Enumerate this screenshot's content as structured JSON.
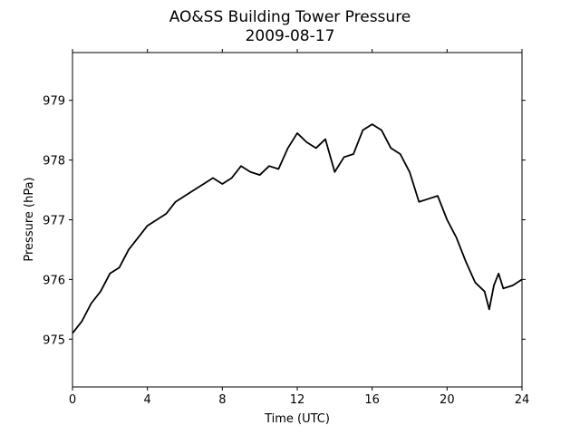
{
  "chart_data": {
    "type": "line",
    "title": "AO&SS Building Tower Pressure",
    "subtitle": "2009-08-17",
    "xlabel": "Time (UTC)",
    "ylabel": "Pressure (hPa)",
    "x": [
      0,
      0.5,
      1,
      1.5,
      2,
      2.5,
      3,
      3.5,
      4,
      4.5,
      5,
      5.5,
      6,
      6.5,
      7,
      7.5,
      8,
      8.5,
      9,
      9.5,
      10,
      10.5,
      11,
      11.5,
      12,
      12.5,
      13,
      13.5,
      14,
      14.5,
      15,
      15.5,
      16,
      16.5,
      17,
      17.5,
      18,
      18.5,
      19,
      19.5,
      20,
      20.5,
      21,
      21.5,
      22,
      22.25,
      22.5,
      22.75,
      23,
      23.5,
      24
    ],
    "series": [
      {
        "name": "Pressure",
        "color": "#000000",
        "values": [
          975.1,
          975.3,
          975.6,
          975.8,
          976.1,
          976.2,
          976.5,
          976.7,
          976.9,
          977.0,
          977.1,
          977.3,
          977.4,
          977.5,
          977.6,
          977.7,
          977.6,
          977.7,
          977.9,
          977.8,
          977.75,
          977.9,
          977.85,
          978.2,
          978.45,
          978.3,
          978.2,
          978.35,
          977.8,
          978.05,
          978.1,
          978.5,
          978.6,
          978.5,
          978.2,
          978.1,
          977.8,
          977.3,
          977.35,
          977.4,
          977.0,
          976.7,
          976.3,
          975.95,
          975.8,
          975.5,
          975.9,
          976.1,
          975.85,
          975.9,
          976.0
        ]
      }
    ],
    "xlim": [
      0,
      24
    ],
    "xticks": [
      0,
      4,
      8,
      12,
      16,
      20,
      24
    ],
    "ylim": [
      974.2,
      979.8
    ],
    "yticks": [
      975,
      976,
      977,
      978,
      979
    ]
  }
}
